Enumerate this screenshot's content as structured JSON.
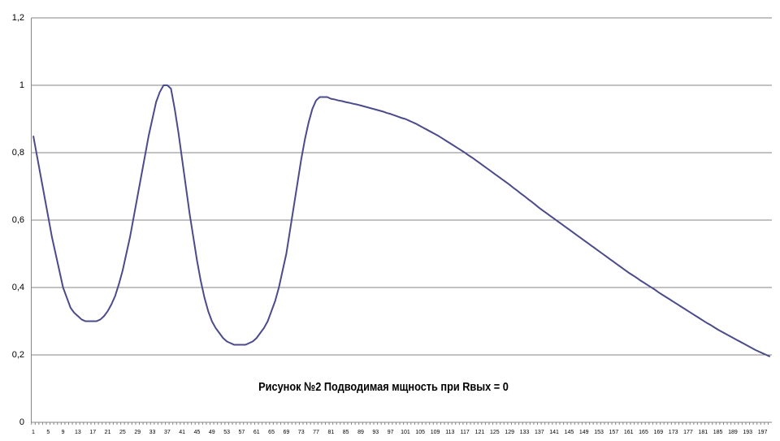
{
  "chart_data": {
    "type": "line",
    "title": "Рисунок №2  Подводимая мщность при Rвых = 0",
    "categories": [
      "1",
      null,
      null,
      null,
      "5",
      null,
      null,
      null,
      "9",
      null,
      null,
      null,
      "13",
      null,
      null,
      null,
      "17",
      null,
      null,
      null,
      "21",
      null,
      null,
      null,
      "25",
      null,
      null,
      null,
      "29",
      null,
      null,
      null,
      "33",
      null,
      null,
      null,
      "37",
      null,
      null,
      null,
      "41",
      null,
      null,
      null,
      "45",
      null,
      null,
      null,
      "49",
      null,
      null,
      null,
      "53",
      null,
      null,
      null,
      "57",
      null,
      null,
      null,
      "61",
      null,
      null,
      null,
      "65",
      null,
      null,
      null,
      "69",
      null,
      null,
      null,
      "73",
      null,
      null,
      null,
      "77",
      null,
      null,
      null,
      "81",
      null,
      null,
      null,
      "85",
      null,
      null,
      null,
      "89",
      null,
      null,
      null,
      "93",
      null,
      null,
      null,
      "97",
      null,
      null,
      null,
      "101",
      null,
      null,
      null,
      "105",
      null,
      null,
      null,
      "109",
      null,
      null,
      null,
      "113",
      null,
      null,
      null,
      "117",
      null,
      null,
      null,
      "121",
      null,
      null,
      null,
      "125",
      null,
      null,
      null,
      "129",
      null,
      null,
      null,
      "133",
      null,
      null,
      null,
      "137",
      null,
      null,
      null,
      "141",
      null,
      null,
      null,
      "145",
      null,
      null,
      null,
      "149",
      null,
      null,
      null,
      "153",
      null,
      null,
      null,
      "157",
      null,
      null,
      null,
      "161",
      null,
      null,
      null,
      "165",
      null,
      null,
      null,
      "169",
      null,
      null,
      null,
      "173",
      null,
      null,
      null,
      "177",
      null,
      null,
      null,
      "181",
      null,
      null,
      null,
      "185",
      null,
      null,
      null,
      "189",
      null,
      null,
      null,
      "193",
      null,
      null,
      null,
      "197",
      null,
      null
    ],
    "values": [
      0.85,
      0.79,
      0.73,
      0.67,
      0.61,
      0.55,
      0.5,
      0.45,
      0.4,
      0.37,
      0.34,
      0.325,
      0.315,
      0.305,
      0.3,
      0.3,
      0.3,
      0.3,
      0.305,
      0.315,
      0.33,
      0.35,
      0.375,
      0.41,
      0.45,
      0.5,
      0.55,
      0.61,
      0.67,
      0.73,
      0.79,
      0.85,
      0.9,
      0.95,
      0.98,
      1,
      1,
      0.99,
      0.93,
      0.86,
      0.78,
      0.7,
      0.62,
      0.55,
      0.48,
      0.42,
      0.37,
      0.33,
      0.3,
      0.28,
      0.265,
      0.25,
      0.24,
      0.235,
      0.23,
      0.23,
      0.23,
      0.23,
      0.235,
      0.24,
      0.25,
      0.265,
      0.28,
      0.3,
      0.33,
      0.36,
      0.4,
      0.45,
      0.5,
      0.57,
      0.64,
      0.71,
      0.78,
      0.84,
      0.89,
      0.93,
      0.955,
      0.965,
      0.965,
      0.965,
      0.96,
      0.958,
      0.955,
      0.953,
      0.95,
      0.948,
      0.945,
      0.943,
      0.94,
      0.937,
      0.934,
      0.931,
      0.928,
      0.925,
      0.922,
      0.918,
      0.915,
      0.911,
      0.907,
      0.903,
      0.9,
      0.895,
      0.89,
      0.885,
      0.879,
      0.873,
      0.867,
      0.861,
      0.855,
      0.849,
      0.842,
      0.835,
      0.828,
      0.821,
      0.814,
      0.807,
      0.8,
      0.792,
      0.785,
      0.777,
      0.769,
      0.761,
      0.753,
      0.745,
      0.737,
      0.729,
      0.721,
      0.713,
      0.705,
      0.696,
      0.688,
      0.679,
      0.671,
      0.662,
      0.654,
      0.645,
      0.636,
      0.628,
      0.62,
      0.612,
      0.604,
      0.596,
      0.588,
      0.58,
      0.572,
      0.564,
      0.556,
      0.548,
      0.54,
      0.532,
      0.524,
      0.516,
      0.508,
      0.5,
      0.492,
      0.484,
      0.476,
      0.468,
      0.46,
      0.452,
      0.444,
      0.437,
      0.43,
      0.422,
      0.415,
      0.408,
      0.401,
      0.394,
      0.386,
      0.379,
      0.372,
      0.365,
      0.358,
      0.351,
      0.344,
      0.337,
      0.33,
      0.323,
      0.316,
      0.309,
      0.302,
      0.295,
      0.289,
      0.282,
      0.275,
      0.269,
      0.263,
      0.257,
      0.251,
      0.245,
      0.239,
      0.233,
      0.227,
      0.221,
      0.215,
      0.21,
      0.205,
      0.2,
      0.195
    ],
    "color": "#4b4b8c",
    "ylim": [
      0,
      1.2
    ],
    "yticks": [
      0,
      {
        "value": 0.2,
        "label": "0,2"
      },
      {
        "value": 0.4,
        "label": "0,4"
      },
      {
        "value": 0.6,
        "label": "0,6"
      },
      {
        "value": 0.8,
        "label": "0,8"
      },
      1,
      {
        "value": 1.2,
        "label": "1,2"
      }
    ],
    "grid": true
  }
}
